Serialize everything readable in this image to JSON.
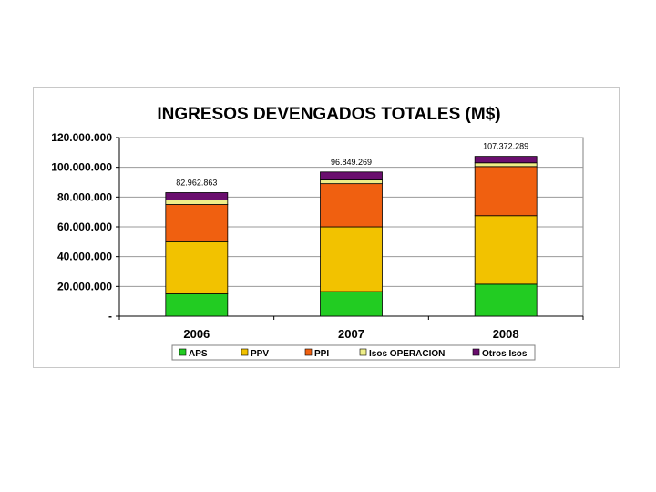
{
  "chart_data": {
    "type": "bar",
    "stacked": true,
    "title": "INGRESOS DEVENGADOS TOTALES (M$)",
    "xlabel": "",
    "ylabel": "",
    "ylim": [
      0,
      120000000
    ],
    "yticks": [
      {
        "value": 0,
        "label": "-"
      },
      {
        "value": 20000000,
        "label": "20.000.000"
      },
      {
        "value": 40000000,
        "label": "40.000.000"
      },
      {
        "value": 60000000,
        "label": "60.000.000"
      },
      {
        "value": 80000000,
        "label": "80.000.000"
      },
      {
        "value": 100000000,
        "label": "100.000.000"
      },
      {
        "value": 120000000,
        "label": "120.000.000"
      }
    ],
    "categories": [
      "2006",
      "2007",
      "2008"
    ],
    "series": [
      {
        "name": "APS",
        "color": "#22cc22",
        "values": [
          15000000,
          16500000,
          21500000
        ]
      },
      {
        "name": "PPV",
        "color": "#f2c200",
        "values": [
          35000000,
          43500000,
          46000000
        ]
      },
      {
        "name": "PPI",
        "color": "#f06010",
        "values": [
          25000000,
          29000000,
          33000000
        ]
      },
      {
        "name": "Isos OPERACION",
        "color": "#eeee88",
        "values": [
          3000000,
          2500000,
          2500000
        ]
      },
      {
        "name": "Otros Isos",
        "color": "#6a0e6e",
        "values": [
          4962863,
          5349269,
          4372289
        ]
      }
    ],
    "totals": [
      82962863,
      96849269,
      107372289
    ],
    "total_labels": [
      "82.962.863",
      "96.849.269",
      "107.372.289"
    ],
    "grid": true,
    "legend_position": "bottom"
  }
}
